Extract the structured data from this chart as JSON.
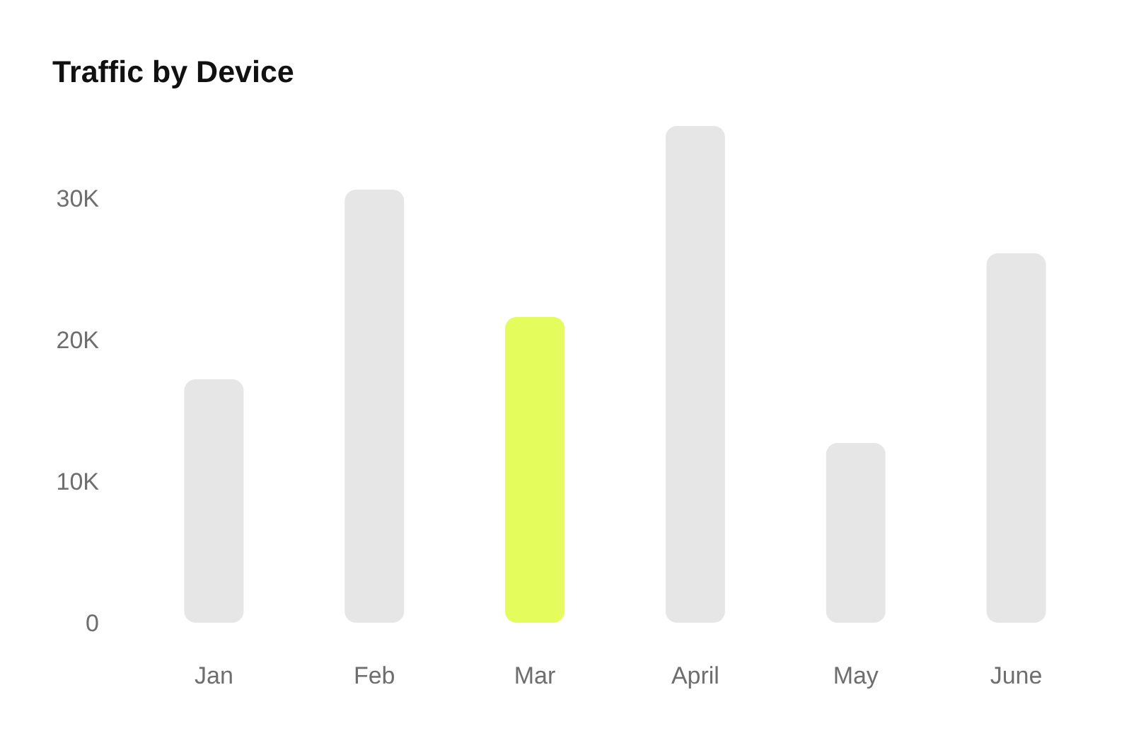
{
  "chart_data": {
    "type": "bar",
    "title": "Traffic by Device",
    "categories": [
      "Jan",
      "Feb",
      "Mar",
      "April",
      "May",
      "June"
    ],
    "values": [
      17200,
      30600,
      21600,
      35100,
      12700,
      26100
    ],
    "colors": [
      "#e6e6e6",
      "#e6e6e6",
      "#e4fc5c",
      "#e6e6e6",
      "#e6e6e6",
      "#e6e6e6"
    ],
    "ylim": [
      0,
      35100
    ],
    "yticks": [
      0,
      {
        "value": 10000,
        "label": "10K"
      },
      {
        "value": 20000,
        "label": "20K"
      },
      {
        "value": 30000,
        "label": "30K"
      }
    ]
  }
}
